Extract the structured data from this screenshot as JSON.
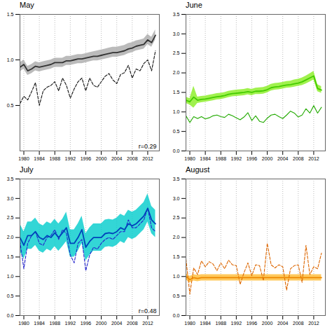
{
  "chart_data": [
    {
      "type": "line",
      "title": "May",
      "x": [
        1979,
        1980,
        1981,
        1982,
        1983,
        1984,
        1985,
        1986,
        1987,
        1988,
        1989,
        1990,
        1991,
        1992,
        1993,
        1994,
        1995,
        1996,
        1997,
        1998,
        1999,
        2000,
        2001,
        2002,
        2003,
        2004,
        2005,
        2006,
        2007,
        2008,
        2009,
        2010,
        2011,
        2012,
        2013,
        2014
      ],
      "xlim": [
        1979,
        2015
      ],
      "xticks": [
        1980,
        1984,
        1988,
        1992,
        1996,
        2000,
        2004,
        2008,
        2012
      ],
      "ylim": [
        0,
        1.5
      ],
      "yticks": [
        0.5,
        {
          "value": 1.0,
          "label": "1.0"
        },
        1.5
      ],
      "grid": "x",
      "series": [
        {
          "type": "area",
          "color": "#aaaaaa",
          "lower": [
            0.87,
            0.9,
            0.83,
            0.85,
            0.88,
            0.87,
            0.88,
            0.89,
            0.9,
            0.92,
            0.92,
            0.92,
            0.94,
            0.94,
            0.95,
            0.96,
            0.96,
            0.97,
            0.98,
            0.99,
            0.99,
            1.0,
            1.01,
            1.02,
            1.03,
            1.03,
            1.04,
            1.05,
            1.07,
            1.08,
            1.1,
            1.11,
            1.12,
            1.17,
            1.14,
            1.22
          ],
          "upper": [
            0.97,
            1.0,
            0.93,
            0.95,
            0.98,
            0.97,
            0.98,
            0.99,
            1.0,
            1.02,
            1.02,
            1.02,
            1.04,
            1.04,
            1.05,
            1.06,
            1.06,
            1.07,
            1.08,
            1.09,
            1.1,
            1.11,
            1.12,
            1.13,
            1.14,
            1.14,
            1.15,
            1.16,
            1.18,
            1.19,
            1.21,
            1.22,
            1.23,
            1.28,
            1.25,
            1.33
          ]
        },
        {
          "type": "line",
          "color": "#111111",
          "line_style": "dashed",
          "values": [
            0.52,
            0.6,
            0.56,
            0.65,
            0.75,
            0.5,
            0.66,
            0.7,
            0.72,
            0.76,
            0.66,
            0.8,
            0.72,
            0.58,
            0.68,
            0.76,
            0.8,
            0.66,
            0.8,
            0.72,
            0.7,
            0.76,
            0.82,
            0.85,
            0.78,
            0.74,
            0.84,
            0.86,
            0.94,
            0.8,
            0.9,
            0.88,
            0.96,
            1.0,
            0.88,
            1.1
          ]
        },
        {
          "type": "line",
          "color": "#333333",
          "line_style": "solid",
          "values": [
            0.92,
            0.95,
            0.88,
            0.9,
            0.93,
            0.92,
            0.93,
            0.94,
            0.95,
            0.97,
            0.97,
            0.97,
            0.99,
            0.99,
            1.0,
            1.01,
            1.01,
            1.02,
            1.03,
            1.04,
            1.04,
            1.05,
            1.06,
            1.07,
            1.08,
            1.08,
            1.09,
            1.1,
            1.12,
            1.13,
            1.15,
            1.16,
            1.17,
            1.22,
            1.19,
            1.27
          ]
        }
      ],
      "annotation": "r=0.29"
    },
    {
      "type": "line",
      "title": "June",
      "x": [
        1979,
        1980,
        1981,
        1982,
        1983,
        1984,
        1985,
        1986,
        1987,
        1988,
        1989,
        1990,
        1991,
        1992,
        1993,
        1994,
        1995,
        1996,
        1997,
        1998,
        1999,
        2000,
        2001,
        2002,
        2003,
        2004,
        2005,
        2006,
        2007,
        2008,
        2009,
        2010,
        2011,
        2012,
        2013,
        2014
      ],
      "xlim": [
        1979,
        2015
      ],
      "xticks": [
        1980,
        1984,
        1988,
        1992,
        1996,
        2000,
        2004,
        2008,
        2012
      ],
      "ylim": [
        0,
        3.5
      ],
      "yticks": [
        {
          "value": 0.0,
          "label": "0.0"
        },
        0.5,
        {
          "value": 1.0,
          "label": "1.0"
        },
        1.5,
        {
          "value": 2.0,
          "label": "2.0"
        },
        2.5,
        {
          "value": 3.0,
          "label": "3.0"
        },
        3.5
      ],
      "grid": "x",
      "series": [
        {
          "type": "area",
          "color": "#88ee22",
          "lower": [
            1.22,
            1.18,
            1.1,
            1.22,
            1.24,
            1.25,
            1.27,
            1.29,
            1.31,
            1.32,
            1.34,
            1.37,
            1.39,
            1.4,
            1.41,
            1.42,
            1.44,
            1.42,
            1.45,
            1.45,
            1.46,
            1.49,
            1.54,
            1.56,
            1.57,
            1.59,
            1.61,
            1.62,
            1.64,
            1.66,
            1.68,
            1.72,
            1.77,
            1.82,
            1.52,
            1.48
          ],
          "upper": [
            1.38,
            1.34,
            1.66,
            1.38,
            1.4,
            1.41,
            1.43,
            1.45,
            1.47,
            1.48,
            1.5,
            1.53,
            1.55,
            1.56,
            1.57,
            1.58,
            1.6,
            1.58,
            1.61,
            1.62,
            1.63,
            1.66,
            1.71,
            1.73,
            1.74,
            1.76,
            1.78,
            1.79,
            1.82,
            1.84,
            1.87,
            1.92,
            1.98,
            2.04,
            1.7,
            1.65
          ]
        },
        {
          "type": "line",
          "color": "#22aa00",
          "line_style": "solid",
          "values": [
            0.9,
            0.73,
            0.88,
            0.83,
            0.88,
            0.82,
            0.85,
            0.9,
            0.92,
            0.88,
            0.86,
            0.94,
            0.9,
            0.85,
            0.8,
            0.87,
            0.98,
            0.78,
            0.9,
            0.76,
            0.73,
            0.84,
            0.92,
            0.94,
            0.88,
            0.83,
            0.92,
            1.02,
            0.97,
            0.87,
            0.92,
            1.08,
            0.97,
            1.16,
            0.97,
            1.12
          ]
        },
        {
          "type": "line",
          "color": "#44cc00",
          "line_style": "solid",
          "values": [
            1.3,
            1.26,
            1.38,
            1.3,
            1.32,
            1.33,
            1.35,
            1.37,
            1.39,
            1.4,
            1.42,
            1.45,
            1.47,
            1.48,
            1.49,
            1.5,
            1.52,
            1.5,
            1.53,
            1.53,
            1.54,
            1.57,
            1.62,
            1.64,
            1.65,
            1.67,
            1.69,
            1.7,
            1.72,
            1.74,
            1.77,
            1.82,
            1.87,
            1.92,
            1.6,
            1.56
          ]
        }
      ]
    },
    {
      "type": "line",
      "title": "July",
      "x": [
        1979,
        1980,
        1981,
        1982,
        1983,
        1984,
        1985,
        1986,
        1987,
        1988,
        1989,
        1990,
        1991,
        1992,
        1993,
        1994,
        1995,
        1996,
        1997,
        1998,
        1999,
        2000,
        2001,
        2002,
        2003,
        2004,
        2005,
        2006,
        2007,
        2008,
        2009,
        2010,
        2011,
        2012,
        2013,
        2014
      ],
      "xlim": [
        1979,
        2015
      ],
      "xticks": [
        1980,
        1984,
        1988,
        1992,
        1996,
        2000,
        2004,
        2008,
        2012
      ],
      "ylim": [
        0,
        3.5
      ],
      "yticks": [
        {
          "value": 0.0,
          "label": "0.0"
        },
        0.5,
        {
          "value": 1.0,
          "label": "1.0"
        },
        1.5,
        {
          "value": 2.0,
          "label": "2.0"
        },
        2.5,
        {
          "value": 3.0,
          "label": "3.0"
        },
        3.5
      ],
      "grid": "x",
      "series": [
        {
          "type": "area",
          "color": "#00cccc",
          "lower": [
            1.65,
            1.45,
            1.7,
            1.7,
            1.8,
            1.65,
            1.6,
            1.7,
            1.65,
            1.77,
            1.65,
            1.77,
            1.9,
            1.5,
            1.5,
            1.65,
            1.85,
            1.4,
            1.55,
            1.65,
            1.65,
            1.65,
            1.75,
            1.77,
            1.75,
            1.8,
            1.9,
            1.85,
            2.0,
            1.95,
            2.0,
            2.1,
            2.2,
            2.4,
            2.1,
            2.0
          ],
          "upper": [
            2.35,
            2.15,
            2.4,
            2.4,
            2.5,
            2.35,
            2.3,
            2.4,
            2.35,
            2.47,
            2.35,
            2.47,
            2.65,
            2.2,
            2.2,
            2.35,
            2.55,
            2.1,
            2.25,
            2.35,
            2.35,
            2.35,
            2.45,
            2.47,
            2.45,
            2.5,
            2.6,
            2.55,
            2.7,
            2.65,
            2.7,
            2.8,
            2.9,
            3.12,
            2.8,
            2.7
          ]
        },
        {
          "type": "line",
          "color": "#2222cc",
          "line_style": "dashed",
          "values": [
            1.9,
            1.2,
            1.85,
            2.05,
            2.15,
            1.85,
            1.8,
            2.0,
            2.05,
            2.2,
            1.95,
            2.2,
            2.1,
            1.55,
            1.35,
            1.85,
            1.95,
            1.15,
            1.55,
            1.75,
            1.7,
            1.85,
            1.95,
            2.0,
            1.95,
            2.05,
            2.15,
            2.15,
            2.45,
            2.25,
            2.25,
            2.35,
            2.45,
            2.75,
            2.25,
            2.15
          ]
        },
        {
          "type": "line",
          "color": "#0044bb",
          "line_style": "solid",
          "values": [
            2.0,
            1.8,
            2.05,
            2.05,
            2.15,
            2.0,
            1.95,
            2.05,
            2.0,
            2.12,
            2.0,
            2.12,
            2.25,
            1.85,
            1.85,
            2.0,
            2.2,
            1.75,
            1.9,
            2.0,
            2.0,
            2.0,
            2.1,
            2.12,
            2.1,
            2.15,
            2.25,
            2.2,
            2.35,
            2.3,
            2.35,
            2.45,
            2.55,
            2.75,
            2.45,
            2.35
          ]
        }
      ],
      "annotation": "r=0.48"
    },
    {
      "type": "line",
      "title": "August",
      "x": [
        1979,
        1980,
        1981,
        1982,
        1983,
        1984,
        1985,
        1986,
        1987,
        1988,
        1989,
        1990,
        1991,
        1992,
        1993,
        1994,
        1995,
        1996,
        1997,
        1998,
        1999,
        2000,
        2001,
        2002,
        2003,
        2004,
        2005,
        2006,
        2007,
        2008,
        2009,
        2010,
        2011,
        2012,
        2013,
        2014
      ],
      "xlim": [
        1979,
        2015
      ],
      "xticks": [
        1980,
        1984,
        1988,
        1992,
        1996,
        2000,
        2004,
        2008,
        2012
      ],
      "ylim": [
        0,
        3.5
      ],
      "yticks": [
        {
          "value": 0.0,
          "label": "0.0"
        },
        0.5,
        {
          "value": 1.0,
          "label": "1.0"
        },
        1.5,
        {
          "value": 2.0,
          "label": "2.0"
        },
        2.5,
        {
          "value": 3.0,
          "label": "3.0"
        },
        3.5
      ],
      "grid": "x",
      "series": [
        {
          "type": "area",
          "color": "#ffbb33",
          "lower": [
            0.92,
            0.84,
            0.89,
            0.87,
            0.89,
            0.89,
            0.89,
            0.89,
            0.89,
            0.89,
            0.89,
            0.89,
            0.89,
            0.89,
            0.89,
            0.89,
            0.89,
            0.89,
            0.89,
            0.89,
            0.89,
            0.89,
            0.89,
            0.89,
            0.89,
            0.89,
            0.89,
            0.89,
            0.89,
            0.89,
            0.89,
            0.89,
            0.89,
            0.89,
            0.89,
            0.89
          ],
          "upper": [
            1.08,
            1.0,
            1.05,
            1.03,
            1.05,
            1.05,
            1.05,
            1.05,
            1.05,
            1.05,
            1.05,
            1.05,
            1.05,
            1.05,
            1.05,
            1.05,
            1.05,
            1.05,
            1.05,
            1.05,
            1.05,
            1.05,
            1.05,
            1.05,
            1.05,
            1.05,
            1.05,
            1.05,
            1.05,
            1.05,
            1.05,
            1.05,
            1.05,
            1.05,
            1.05,
            1.05
          ]
        },
        {
          "type": "line",
          "color": "#dd6600",
          "line_style": "dashed",
          "values": [
            1.45,
            0.55,
            1.22,
            1.05,
            1.4,
            1.25,
            1.38,
            1.32,
            1.15,
            1.35,
            1.2,
            1.42,
            1.3,
            1.28,
            0.8,
            1.1,
            1.35,
            1.02,
            1.3,
            1.28,
            0.9,
            1.85,
            1.3,
            1.22,
            1.3,
            1.25,
            0.65,
            1.2,
            1.28,
            1.3,
            0.85,
            1.8,
            1.05,
            1.25,
            1.2,
            1.6
          ]
        },
        {
          "type": "line",
          "color": "#ee8800",
          "line_style": "solid",
          "values": [
            1.0,
            0.92,
            0.97,
            0.95,
            0.97,
            0.97,
            0.97,
            0.97,
            0.97,
            0.97,
            0.97,
            0.97,
            0.97,
            0.97,
            0.97,
            0.97,
            0.97,
            0.97,
            0.97,
            0.97,
            0.97,
            0.97,
            0.97,
            0.97,
            0.97,
            0.97,
            0.97,
            0.97,
            0.97,
            0.97,
            0.97,
            0.97,
            0.97,
            0.97,
            0.97,
            0.97
          ]
        }
      ]
    }
  ]
}
